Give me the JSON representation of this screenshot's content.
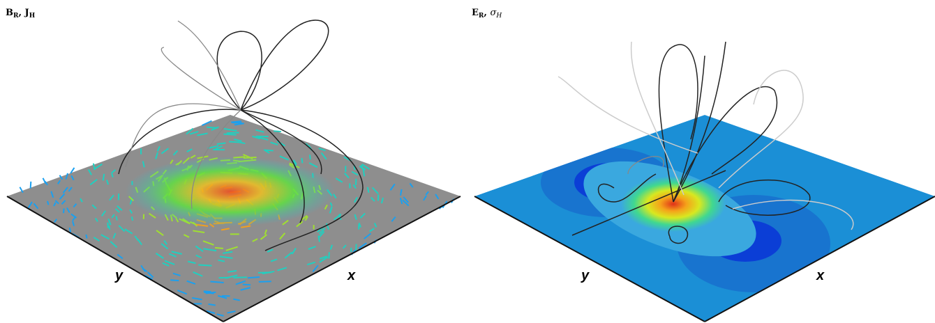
{
  "panels": [
    {
      "title_parts": [
        {
          "base": "B",
          "sub": "R"
        },
        {
          "sep": ", "
        },
        {
          "base": "J",
          "sub": "H"
        }
      ],
      "axis_labels": {
        "y": "y",
        "x": "x"
      }
    },
    {
      "title_parts": [
        {
          "base": "E",
          "sub": "R"
        },
        {
          "sep": ", "
        },
        {
          "base": "σ",
          "sub": "H"
        }
      ],
      "axis_labels": {
        "y": "y",
        "x": "x"
      }
    }
  ]
}
